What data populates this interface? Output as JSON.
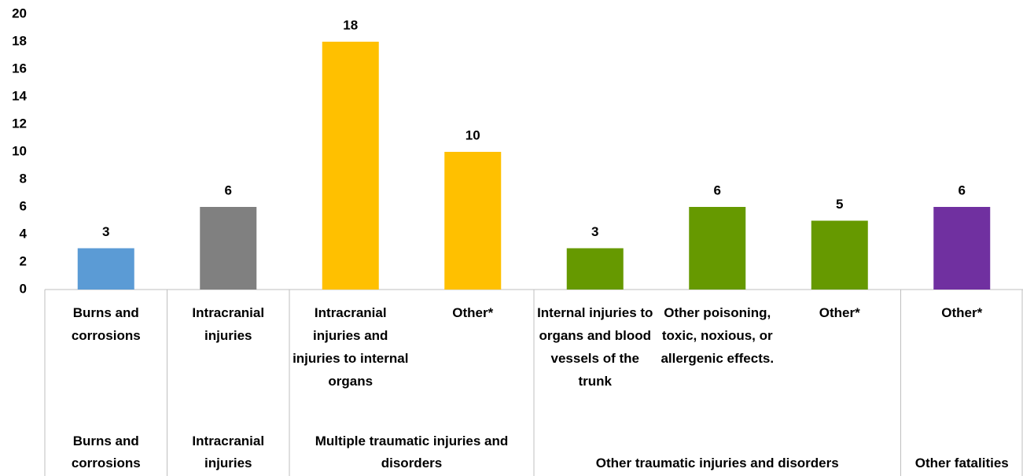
{
  "chart_data": {
    "type": "bar",
    "groups": [
      {
        "label": "Burns and corrosions",
        "categories": [
          "Burns and corrosions"
        ],
        "values": [
          3
        ],
        "color": "#5b9bd5"
      },
      {
        "label": "Intracranial injuries",
        "categories": [
          "Intracranial injuries"
        ],
        "values": [
          6
        ],
        "color": "#808080"
      },
      {
        "label": "Multiple traumatic injuries and disorders",
        "categories": [
          "Intracranial injuries and injuries to internal organs",
          "Other*"
        ],
        "values": [
          18,
          10
        ],
        "color": "#ffc000"
      },
      {
        "label": "Other traumatic injuries and disorders",
        "categories": [
          "Internal injuries to organs and blood vessels of the trunk",
          "Other poisoning, toxic, noxious, or allergenic effects.",
          "Other*"
        ],
        "values": [
          3,
          6,
          5
        ],
        "color": "#669900"
      },
      {
        "label": "Other fatalities",
        "categories": [
          "Other*"
        ],
        "values": [
          6
        ],
        "color": "#7030a0"
      }
    ],
    "ylim": [
      0,
      20
    ],
    "yticks": [
      0,
      2,
      4,
      6,
      8,
      10,
      12,
      14,
      16,
      18,
      20
    ],
    "grid": false
  }
}
